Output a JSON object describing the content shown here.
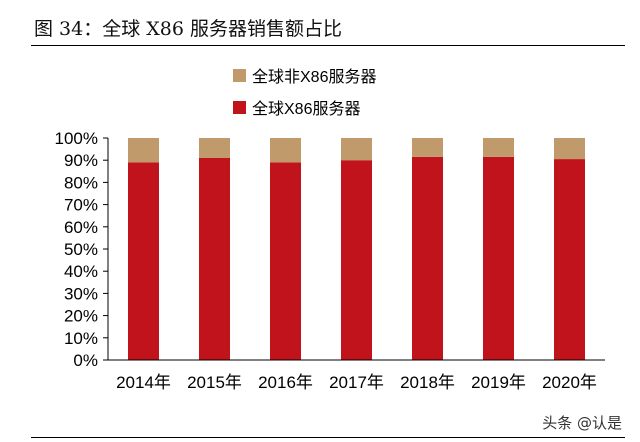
{
  "figure_title": "图 34：全球 X86 服务器销售额占比",
  "watermark": "头条 @认是",
  "colors": {
    "x86": "#c0131b",
    "non_x86": "#c19a6b",
    "axis": "#000000"
  },
  "chart_data": {
    "type": "bar",
    "stacked": true,
    "percent": true,
    "title": "全球 X86 服务器销售额占比",
    "categories": [
      "2014年",
      "2015年",
      "2016年",
      "2017年",
      "2018年",
      "2019年",
      "2020年"
    ],
    "series": [
      {
        "name": "全球X86服务器",
        "values": [
          89,
          91,
          89,
          90,
          91.5,
          91.5,
          90.5
        ],
        "color": "#c0131b"
      },
      {
        "name": "全球非X86服务器",
        "values": [
          11,
          9,
          11,
          10,
          8.5,
          8.5,
          9.5
        ],
        "color": "#c19a6b"
      }
    ],
    "legend": [
      "全球非X86服务器",
      "全球X86服务器"
    ],
    "legend_position": "top-center",
    "ylim": [
      0,
      100
    ],
    "yticks": [
      "0%",
      "10%",
      "20%",
      "30%",
      "40%",
      "50%",
      "60%",
      "70%",
      "80%",
      "90%",
      "100%"
    ],
    "grid": false,
    "xlabel": "",
    "ylabel": ""
  }
}
